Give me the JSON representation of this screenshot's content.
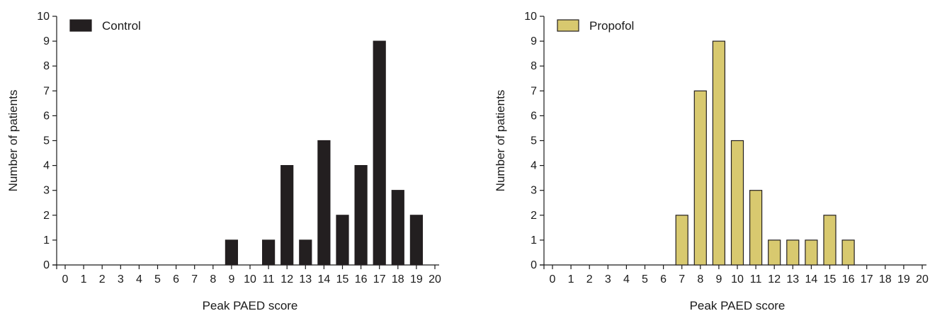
{
  "chart_data": [
    {
      "type": "bar",
      "categories": [
        "0",
        "1",
        "2",
        "3",
        "4",
        "5",
        "6",
        "7",
        "8",
        "9",
        "10",
        "11",
        "12",
        "13",
        "14",
        "15",
        "16",
        "17",
        "18",
        "19",
        "20"
      ],
      "series": [
        {
          "name": "Control",
          "color": "#231f20",
          "values": [
            0,
            0,
            0,
            0,
            0,
            0,
            0,
            0,
            0,
            1,
            0,
            1,
            4,
            1,
            5,
            2,
            4,
            9,
            3,
            2,
            0
          ]
        }
      ],
      "xlabel": "Peak PAED score",
      "ylabel": "Number of patients",
      "ylim": [
        0,
        10
      ],
      "yticks": [
        "0",
        "1",
        "2",
        "3",
        "4",
        "5",
        "6",
        "7",
        "8",
        "9",
        "10"
      ],
      "legend_position": "top-left",
      "grid": false
    },
    {
      "type": "bar",
      "categories": [
        "0",
        "1",
        "2",
        "3",
        "4",
        "5",
        "6",
        "7",
        "8",
        "9",
        "10",
        "11",
        "12",
        "13",
        "14",
        "15",
        "16",
        "17",
        "18",
        "19",
        "20"
      ],
      "series": [
        {
          "name": "Propofol",
          "color": "#d8c96f",
          "values": [
            0,
            0,
            0,
            0,
            0,
            0,
            0,
            2,
            7,
            9,
            5,
            3,
            1,
            1,
            1,
            2,
            1,
            0,
            0,
            0,
            0
          ]
        }
      ],
      "xlabel": "Peak PAED score",
      "ylabel": "Number of patients",
      "ylim": [
        0,
        10
      ],
      "yticks": [
        "0",
        "1",
        "2",
        "3",
        "4",
        "5",
        "6",
        "7",
        "8",
        "9",
        "10"
      ],
      "legend_position": "top-left",
      "grid": false
    }
  ]
}
